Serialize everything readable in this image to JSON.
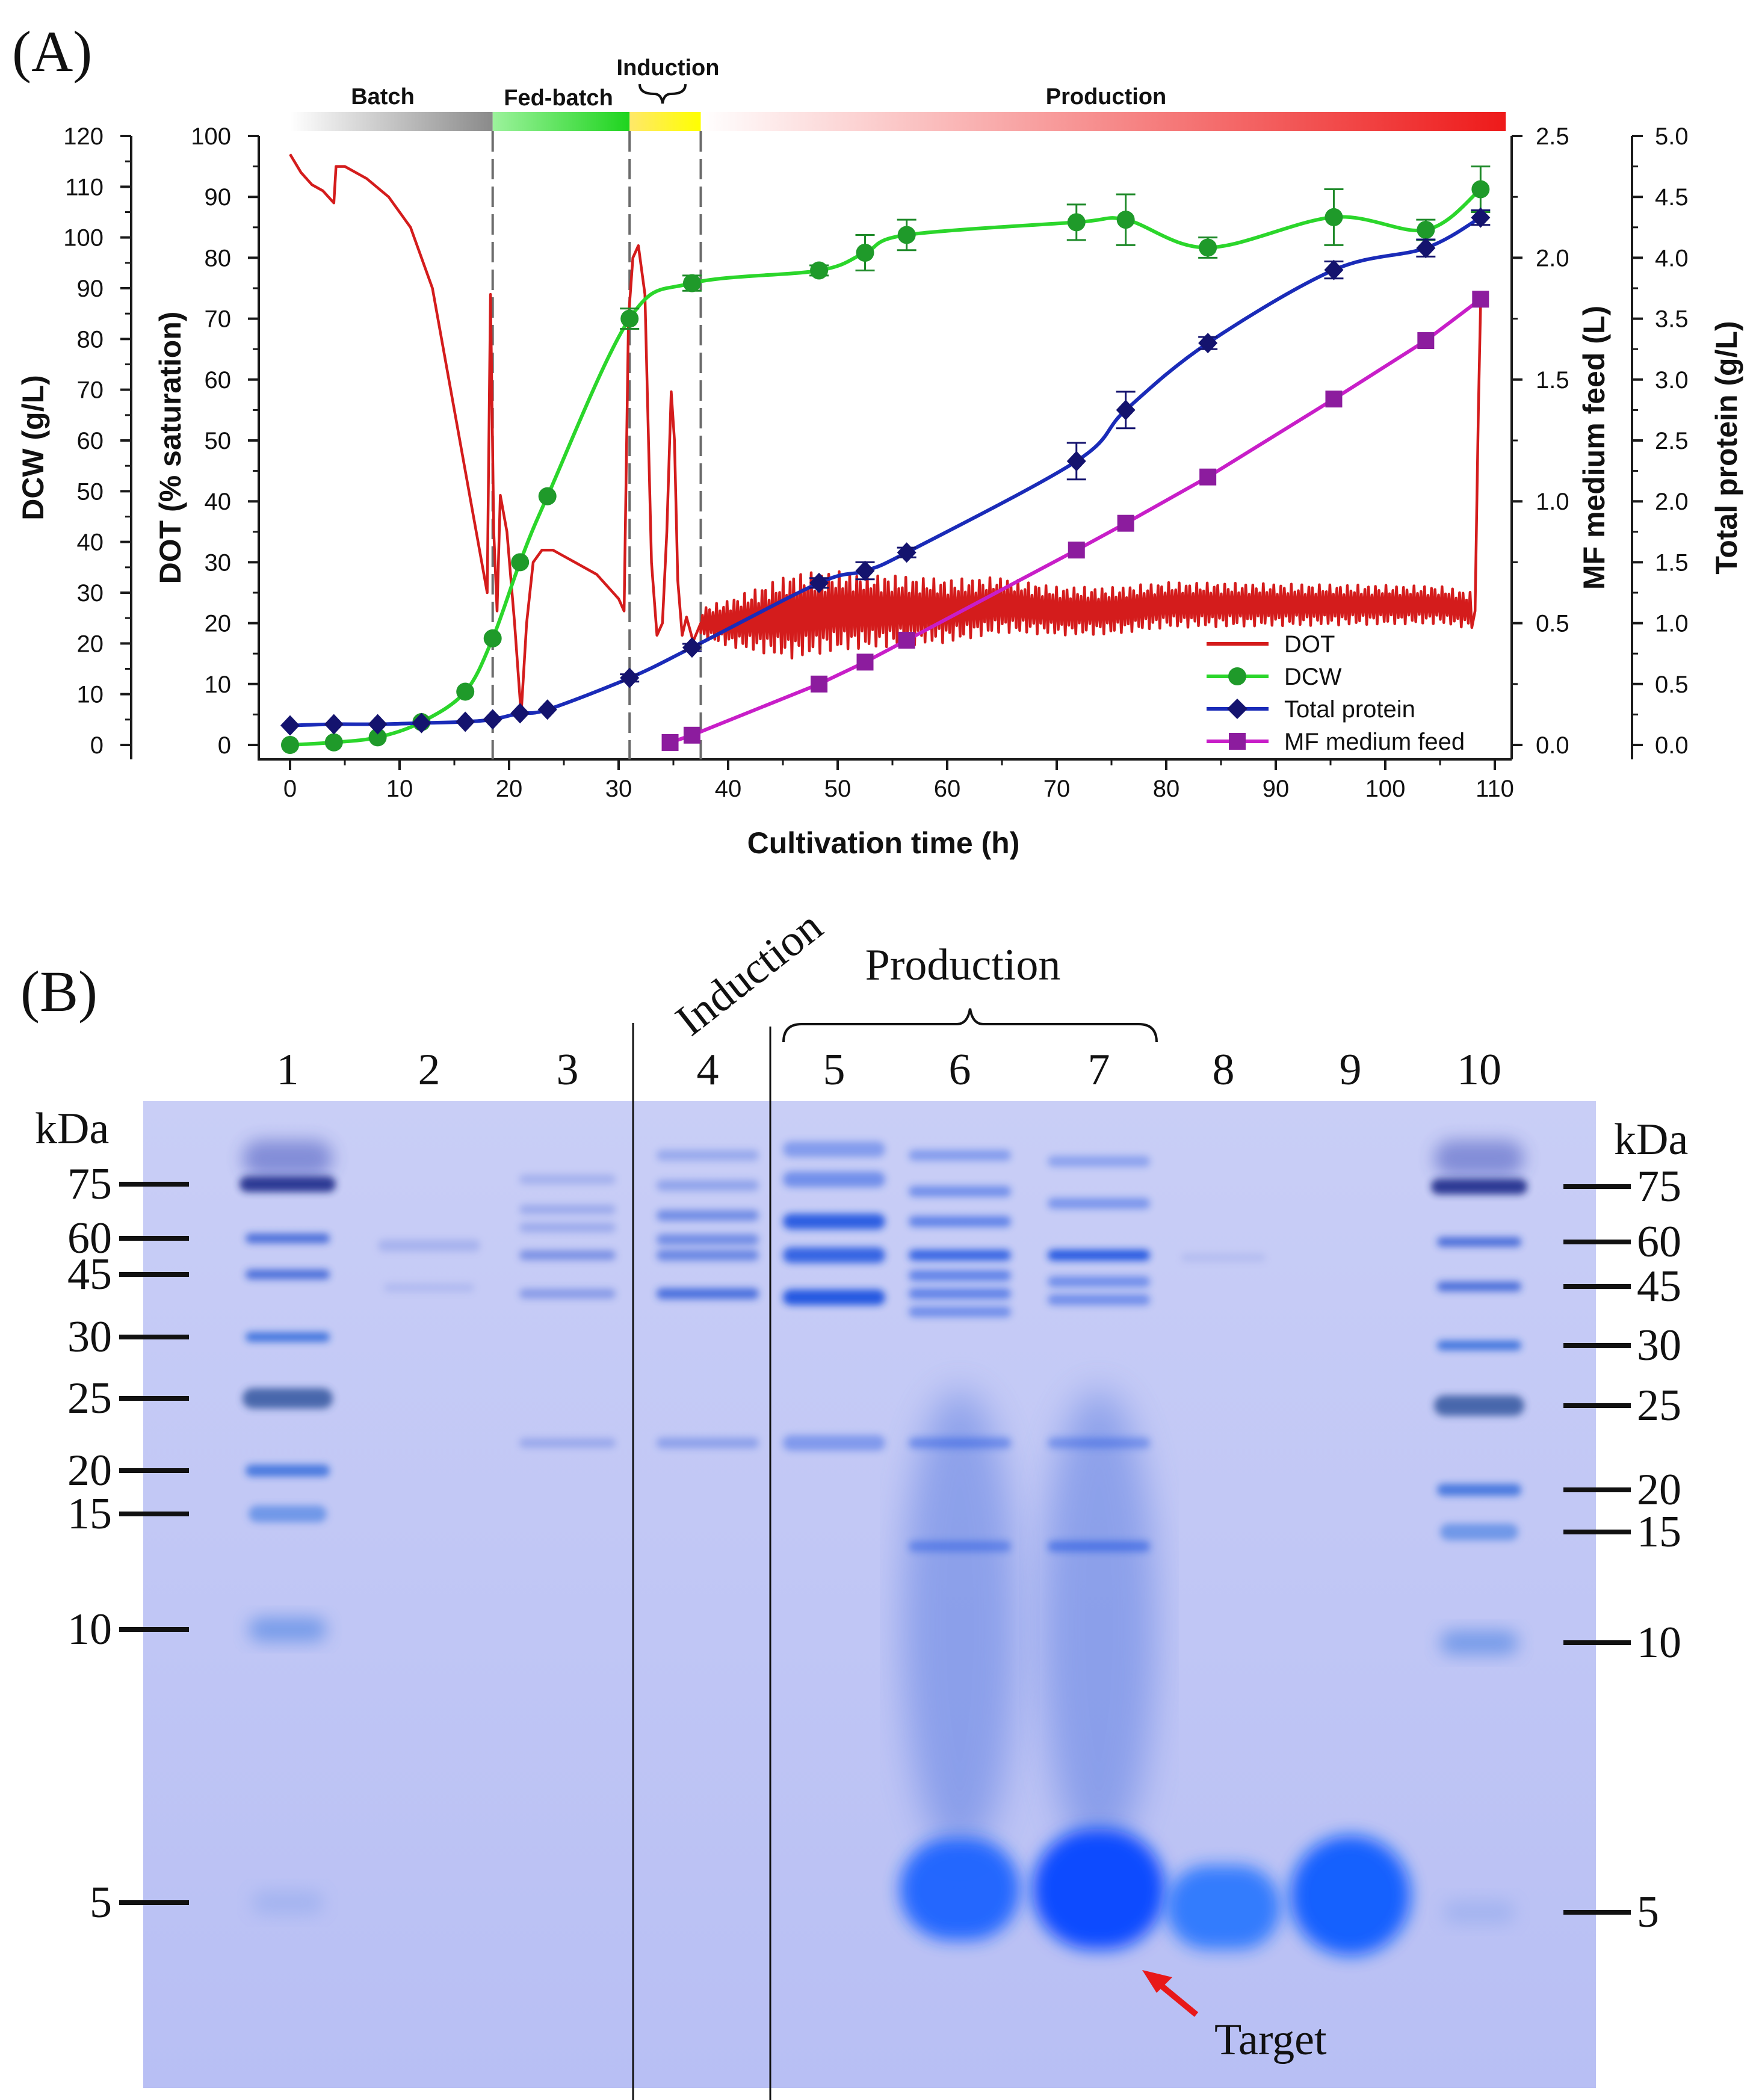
{
  "panel_a": {
    "label": "(A)",
    "phases": [
      {
        "name": "Batch",
        "start": 0,
        "end": 18.5,
        "color_from": "#ffffff",
        "color_to": "#8a8a8a"
      },
      {
        "name": "Fed-batch",
        "start": 18.5,
        "end": 31,
        "color_from": "#9cf29c",
        "color_to": "#1ed41e"
      },
      {
        "name": "Induction",
        "start": 31,
        "end": 37.5,
        "color_from": "#ffe86a",
        "color_to": "#ffff00"
      },
      {
        "name": "Production",
        "start": 37.5,
        "end": 111,
        "color_from": "#ffffff",
        "color_to": "#ee1a1a"
      }
    ],
    "phase_boundaries": [
      18.5,
      31,
      37.5
    ]
  },
  "chart_data": {
    "type": "line",
    "title": "",
    "xlabel": "Cultivation time (h)",
    "xlim": [
      -3,
      111
    ],
    "xticks": [
      0,
      10,
      20,
      30,
      40,
      50,
      60,
      70,
      80,
      90,
      100,
      110
    ],
    "axes": {
      "dcw": {
        "label": "DCW (g/L)",
        "lim": [
          0,
          120
        ],
        "ticks": [
          0,
          10,
          20,
          30,
          40,
          50,
          60,
          70,
          80,
          90,
          100,
          110,
          120
        ],
        "color": "#111111"
      },
      "dot": {
        "label": "DOT (% saturation)",
        "lim": [
          0,
          100
        ],
        "ticks": [
          0,
          10,
          20,
          30,
          40,
          50,
          60,
          70,
          80,
          90,
          100
        ],
        "color": "#111111"
      },
      "feed": {
        "label": "MF medium feed (L)",
        "lim": [
          0,
          2.5
        ],
        "ticks": [
          "0.0",
          "0.5",
          "1.0",
          "1.5",
          "2.0",
          "2.5"
        ],
        "color": "#111111"
      },
      "protein": {
        "label": "Total protein (g/L)",
        "lim": [
          0,
          5
        ],
        "ticks": [
          "0.0",
          "0.5",
          "1.0",
          "1.5",
          "2.0",
          "2.5",
          "3.0",
          "3.5",
          "4.0",
          "4.5",
          "5.0"
        ],
        "color": "#111111"
      }
    },
    "series": [
      {
        "name": "DOT",
        "axis": "dot",
        "color": "#d41c1c",
        "marker": "none",
        "x": [
          0,
          1,
          2,
          3,
          4,
          4.2,
          5,
          7,
          9,
          11,
          13,
          15,
          16,
          17,
          17.5,
          18,
          18.3,
          18.6,
          18.9,
          19.2,
          19.8,
          20.5,
          21.1,
          21.6,
          22.2,
          23,
          24,
          25,
          26,
          27,
          28,
          29,
          30,
          30.5,
          30.9,
          31.3,
          31.8,
          32.4,
          33,
          33.5,
          34,
          34.4,
          34.8,
          35.1,
          35.4,
          35.8,
          36.2,
          36.8,
          37.5,
          40,
          45,
          50,
          55,
          60,
          65,
          70,
          75,
          80,
          85,
          90,
          95,
          100,
          105,
          108.2,
          108.5,
          108.7
        ],
        "y": [
          97,
          94,
          92,
          91,
          89,
          95,
          95,
          93,
          90,
          85,
          75,
          55,
          45,
          35,
          30,
          25,
          74,
          35,
          22,
          41,
          35,
          20,
          5,
          20,
          30,
          32,
          32,
          31,
          30,
          29,
          28,
          26,
          24,
          22,
          70,
          80,
          82,
          74,
          30,
          18,
          20,
          35,
          58,
          50,
          27,
          18,
          21,
          17,
          20,
          20,
          21,
          22,
          22,
          22,
          23,
          22,
          22,
          23,
          23,
          23,
          23,
          23,
          23,
          22,
          55,
          72
        ],
        "oscillation": {
          "from_x": 37.5,
          "to_x": 108,
          "amplitude_dot": [
            2.5,
            7,
            4,
            3
          ]
        }
      },
      {
        "name": "DCW",
        "axis": "dcw",
        "color": "#2bd62b",
        "marker": "circle",
        "x": [
          0,
          4,
          8,
          12,
          16,
          18.5,
          21,
          23.5,
          31,
          36.7,
          48.3,
          52.5,
          56.3,
          71.8,
          76.3,
          83.8,
          95.3,
          103.7,
          108.7
        ],
        "y": [
          0,
          0.5,
          1.5,
          4.5,
          10.5,
          21,
          36,
          49,
          84,
          91,
          93.5,
          97,
          100.5,
          103,
          103.5,
          98,
          104,
          101.5,
          109.5
        ],
        "err": [
          0,
          0,
          0,
          0,
          0,
          0,
          0,
          0,
          2,
          1.5,
          1,
          3.5,
          3,
          3.5,
          5,
          2,
          5.5,
          2,
          4.5
        ]
      },
      {
        "name": "Total protein",
        "axis": "protein",
        "color": "#1a2bb8",
        "marker": "diamond",
        "x": [
          0,
          4,
          8,
          12,
          16,
          18.5,
          21,
          23.5,
          31,
          36.7,
          48.3,
          52.5,
          56.3,
          71.8,
          76.3,
          83.8,
          95.3,
          103.7,
          108.7
        ],
        "y": [
          0.16,
          0.17,
          0.17,
          0.18,
          0.19,
          0.21,
          0.26,
          0.29,
          0.55,
          0.8,
          1.33,
          1.43,
          1.58,
          2.33,
          2.75,
          3.3,
          3.9,
          4.08,
          4.33
        ],
        "err": [
          0,
          0,
          0,
          0,
          0,
          0,
          0,
          0,
          0.03,
          0.03,
          0.04,
          0.07,
          0.04,
          0.15,
          0.15,
          0.05,
          0.07,
          0.07,
          0.06
        ]
      },
      {
        "name": "MF medium feed",
        "axis": "feed",
        "color": "#c81ec8",
        "marker": "square",
        "x": [
          34.7,
          36.7,
          48.3,
          52.5,
          56.3,
          71.8,
          76.3,
          83.8,
          95.3,
          103.7,
          108.7
        ],
        "y": [
          0.01,
          0.04,
          0.25,
          0.34,
          0.43,
          0.8,
          0.91,
          1.1,
          1.42,
          1.66,
          1.83
        ]
      }
    ],
    "legend": [
      "DOT",
      "DCW",
      "Total protein",
      "MF medium feed"
    ],
    "legend_position": "bottom-right"
  },
  "panel_b": {
    "label": "(B)",
    "induction_label": "Induction",
    "production_label": "Production",
    "lane_numbers": [
      "1",
      "2",
      "3",
      "4",
      "5",
      "6",
      "7",
      "8",
      "9",
      "10"
    ],
    "left_unit": "kDa",
    "right_unit": "kDa",
    "markers_left": [
      "75",
      "60",
      "45",
      "30",
      "25",
      "20",
      "15",
      "10",
      "5"
    ],
    "markers_right": [
      "75",
      "60",
      "45",
      "30",
      "25",
      "20",
      "15",
      "10",
      "5"
    ],
    "target_label": "Target"
  }
}
